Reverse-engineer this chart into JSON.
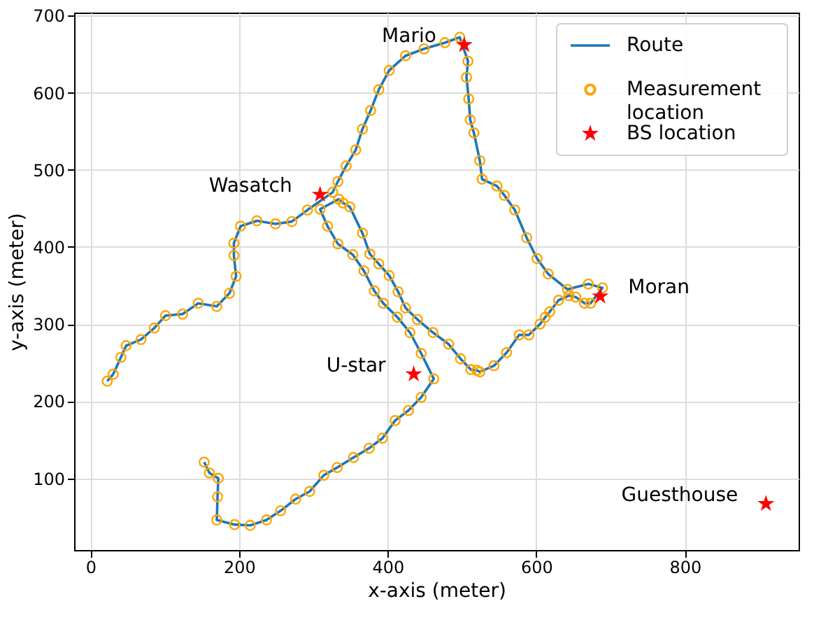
{
  "chart_data": {
    "type": "line",
    "xlabel": "x-axis (meter)",
    "ylabel": "y-axis (meter)",
    "xlim": [
      -22,
      953
    ],
    "ylim": [
      7,
      704
    ],
    "xticks": [
      0,
      200,
      400,
      600,
      800
    ],
    "yticks": [
      100,
      200,
      300,
      400,
      500,
      600,
      700
    ],
    "grid": true,
    "legend": "top right",
    "series": [
      {
        "name": "Route",
        "color": "#1f77b4",
        "line_style": "solid",
        "x": [
          22.6,
          30.6,
          41,
          48,
          68,
          86,
          101,
          124,
          145,
          170,
          187,
          196,
          193,
          193,
          202,
          224,
          249,
          271,
          292,
          326,
          333,
          344,
          357,
          366,
          377,
          388,
          402,
          424,
          449,
          477,
          497,
          508,
          506,
          509,
          511,
          516,
          524,
          527,
          547,
          557,
          571,
          587,
          601,
          616,
          642,
          670,
          689,
          673,
          665,
          653,
          644,
          630,
          618,
          612,
          605,
          590,
          577,
          560,
          543,
          524,
          520,
          512,
          498,
          482,
          461,
          440,
          424,
          414,
          402,
          388,
          376,
          366,
          349,
          340,
          334,
          309,
          319,
          333,
          353,
          368,
          382,
          394,
          413,
          430,
          445,
          462,
          445,
          428,
          410,
          393,
          375,
          354,
          332,
          314,
          295,
          276,
          256,
          237,
          215,
          194,
          170,
          171,
          172,
          160,
          153
        ],
        "values": [
          226,
          235,
          257,
          272,
          280,
          295,
          311,
          313,
          327,
          323,
          340,
          362,
          389,
          405,
          427,
          434,
          430,
          433,
          448,
          471,
          485,
          505,
          526,
          553,
          577,
          604,
          629,
          648,
          657,
          665,
          672,
          641,
          620,
          592,
          565,
          548,
          512,
          488,
          479,
          467,
          448,
          412,
          385,
          365,
          345,
          352,
          347,
          327,
          327,
          335,
          337,
          331,
          316,
          309,
          300,
          286,
          286,
          263,
          246,
          238,
          240,
          241,
          255,
          274,
          289,
          306,
          321,
          342,
          363,
          378,
          391,
          418,
          452,
          457,
          462,
          449,
          427,
          404,
          390,
          369,
          343,
          327,
          309,
          289,
          262,
          229,
          205,
          188,
          175,
          152,
          139,
          127,
          114,
          104,
          83,
          73,
          58,
          46,
          39,
          40,
          46,
          76,
          100,
          107,
          121
        ]
      },
      {
        "name": "Measurement location",
        "type": "scatter",
        "color": "#ffa500",
        "marker": "circle",
        "x": [
          22.6,
          30.6,
          41,
          48,
          68,
          86,
          101,
          124,
          145,
          170,
          187,
          196,
          193,
          193,
          202,
          224,
          249,
          271,
          292,
          326,
          333,
          344,
          357,
          366,
          377,
          388,
          402,
          424,
          449,
          477,
          497,
          508,
          506,
          509,
          511,
          516,
          524,
          527,
          547,
          557,
          571,
          587,
          601,
          616,
          642,
          670,
          689,
          673,
          665,
          653,
          644,
          630,
          618,
          612,
          605,
          590,
          577,
          560,
          543,
          524,
          520,
          512,
          498,
          482,
          461,
          440,
          424,
          414,
          402,
          388,
          376,
          366,
          349,
          340,
          334,
          309,
          319,
          333,
          353,
          368,
          382,
          394,
          413,
          430,
          445,
          462,
          445,
          428,
          410,
          393,
          375,
          354,
          332,
          314,
          295,
          276,
          256,
          237,
          215,
          194,
          170,
          171,
          172,
          160,
          153
        ],
        "values": [
          226,
          235,
          257,
          272,
          280,
          295,
          311,
          313,
          327,
          323,
          340,
          362,
          389,
          405,
          427,
          434,
          430,
          433,
          448,
          471,
          485,
          505,
          526,
          553,
          577,
          604,
          629,
          648,
          657,
          665,
          672,
          641,
          620,
          592,
          565,
          548,
          512,
          488,
          479,
          467,
          448,
          412,
          385,
          365,
          345,
          352,
          347,
          327,
          327,
          335,
          337,
          331,
          316,
          309,
          300,
          286,
          286,
          263,
          246,
          238,
          240,
          241,
          255,
          274,
          289,
          306,
          321,
          342,
          363,
          378,
          391,
          418,
          452,
          457,
          462,
          449,
          427,
          404,
          390,
          369,
          343,
          327,
          309,
          289,
          262,
          229,
          205,
          188,
          175,
          152,
          139,
          127,
          114,
          104,
          83,
          73,
          58,
          46,
          39,
          40,
          46,
          76,
          100,
          107,
          121
        ]
      },
      {
        "name": "BS location",
        "type": "scatter",
        "color": "#ff0000",
        "marker": "star",
        "x": [
          503,
          309,
          686,
          435,
          909
        ],
        "values": [
          662,
          468,
          336,
          235,
          67
        ]
      }
    ],
    "annotations": [
      {
        "text": "Mario",
        "x": 503,
        "y": 662
      },
      {
        "text": "Wasatch",
        "x": 309,
        "y": 468
      },
      {
        "text": "Moran",
        "x": 686,
        "y": 336
      },
      {
        "text": "U-star",
        "x": 435,
        "y": 235
      },
      {
        "text": "Guesthouse",
        "x": 909,
        "y": 67
      }
    ]
  }
}
